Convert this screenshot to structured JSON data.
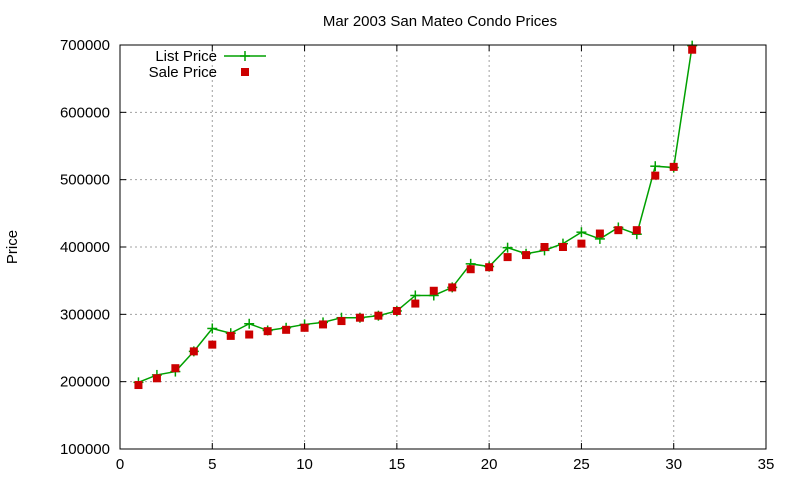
{
  "chart_data": {
    "type": "line",
    "title": "Mar 2003 San Mateo Condo Prices",
    "xlabel": "",
    "ylabel": "Price",
    "xlim": [
      0,
      35
    ],
    "ylim": [
      100000,
      700000
    ],
    "xticks": [
      0,
      5,
      10,
      15,
      20,
      25,
      30,
      35
    ],
    "yticks": [
      100000,
      200000,
      300000,
      400000,
      500000,
      600000,
      700000
    ],
    "xtick_labels": [
      "0",
      "5",
      "10",
      "15",
      "20",
      "25",
      "30",
      "35"
    ],
    "ytick_labels": [
      "100000",
      "200000",
      "300000",
      "400000",
      "500000",
      "600000",
      "700000"
    ],
    "grid": true,
    "legend_position": "top-left",
    "series": [
      {
        "name": "List Price",
        "style": "line-plus",
        "color": "#00a000",
        "x": [
          1,
          2,
          3,
          4,
          5,
          6,
          7,
          8,
          9,
          10,
          11,
          12,
          13,
          14,
          15,
          16,
          17,
          18,
          19,
          20,
          21,
          22,
          23,
          24,
          25,
          26,
          27,
          28,
          29,
          30,
          31
        ],
        "values": [
          199000,
          210000,
          215000,
          245000,
          279000,
          272000,
          286000,
          276000,
          280000,
          285000,
          288000,
          295000,
          295000,
          298000,
          305000,
          328000,
          328000,
          340000,
          375000,
          371000,
          399000,
          390000,
          395000,
          405000,
          422000,
          412000,
          429000,
          419000,
          520000,
          518000,
          699000
        ]
      },
      {
        "name": "Sale Price",
        "style": "points-square",
        "color": "#cc0000",
        "x": [
          1,
          2,
          3,
          4,
          5,
          6,
          7,
          8,
          9,
          10,
          11,
          12,
          13,
          14,
          15,
          16,
          17,
          18,
          19,
          20,
          21,
          22,
          23,
          24,
          25,
          26,
          27,
          28,
          29,
          30,
          31
        ],
        "values": [
          195000,
          205000,
          220000,
          245000,
          255000,
          268000,
          270000,
          275000,
          277000,
          280000,
          285000,
          290000,
          295000,
          298000,
          305000,
          316000,
          335000,
          340000,
          367000,
          370000,
          385000,
          388000,
          400000,
          400000,
          405000,
          420000,
          425000,
          425000,
          506000,
          519000,
          693000
        ]
      }
    ]
  }
}
